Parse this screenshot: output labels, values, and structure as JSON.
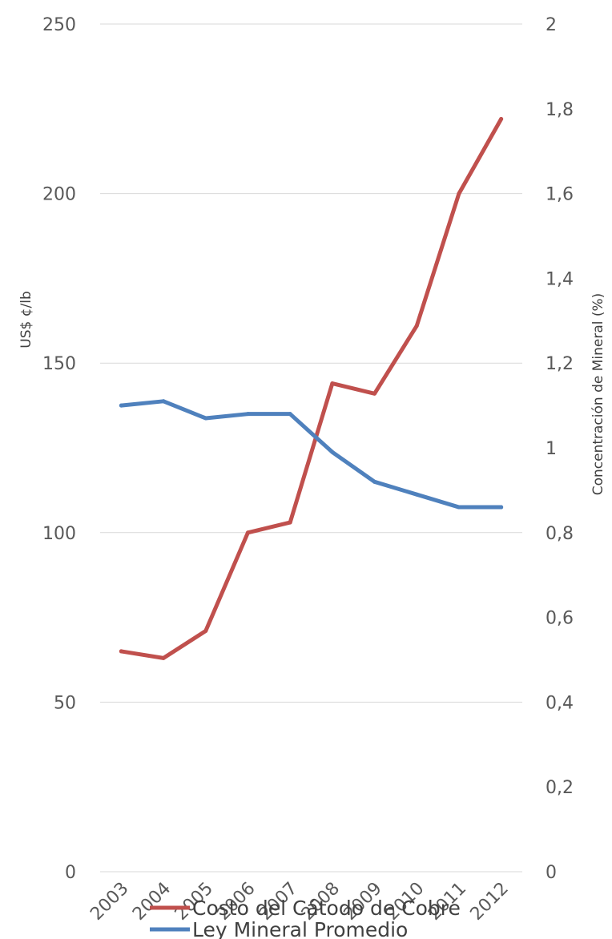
{
  "chart_data": {
    "type": "line",
    "x": [
      "2003",
      "2004",
      "2005",
      "2006",
      "2007",
      "2008",
      "2009",
      "2010",
      "2011",
      "2012"
    ],
    "series": [
      {
        "name": "Costo del Cátodo de Cobre",
        "axis": "left",
        "color": "#c0504d",
        "values": [
          65,
          63,
          71,
          100,
          103,
          144,
          141,
          161,
          200,
          222
        ]
      },
      {
        "name": "Ley Mineral Promedio",
        "axis": "right",
        "color": "#4f81bd",
        "values": [
          1.1,
          1.11,
          1.07,
          1.08,
          1.08,
          0.99,
          0.92,
          0.89,
          0.86,
          0.86
        ]
      }
    ],
    "ylabel": "US$ ¢/lb",
    "ylabel_right": "Concentración de Mineral (%)",
    "ylim": [
      0,
      250
    ],
    "ylim_right": [
      0,
      2
    ],
    "yticks": [
      "0",
      "50",
      "100",
      "150",
      "200",
      "250"
    ],
    "yticks_right": [
      "0",
      "0,2",
      "0,4",
      "0,6",
      "0,8",
      "1",
      "1,2",
      "1,4",
      "1,6",
      "1,8",
      "2"
    ],
    "grid": true,
    "legend_position": "bottom"
  }
}
